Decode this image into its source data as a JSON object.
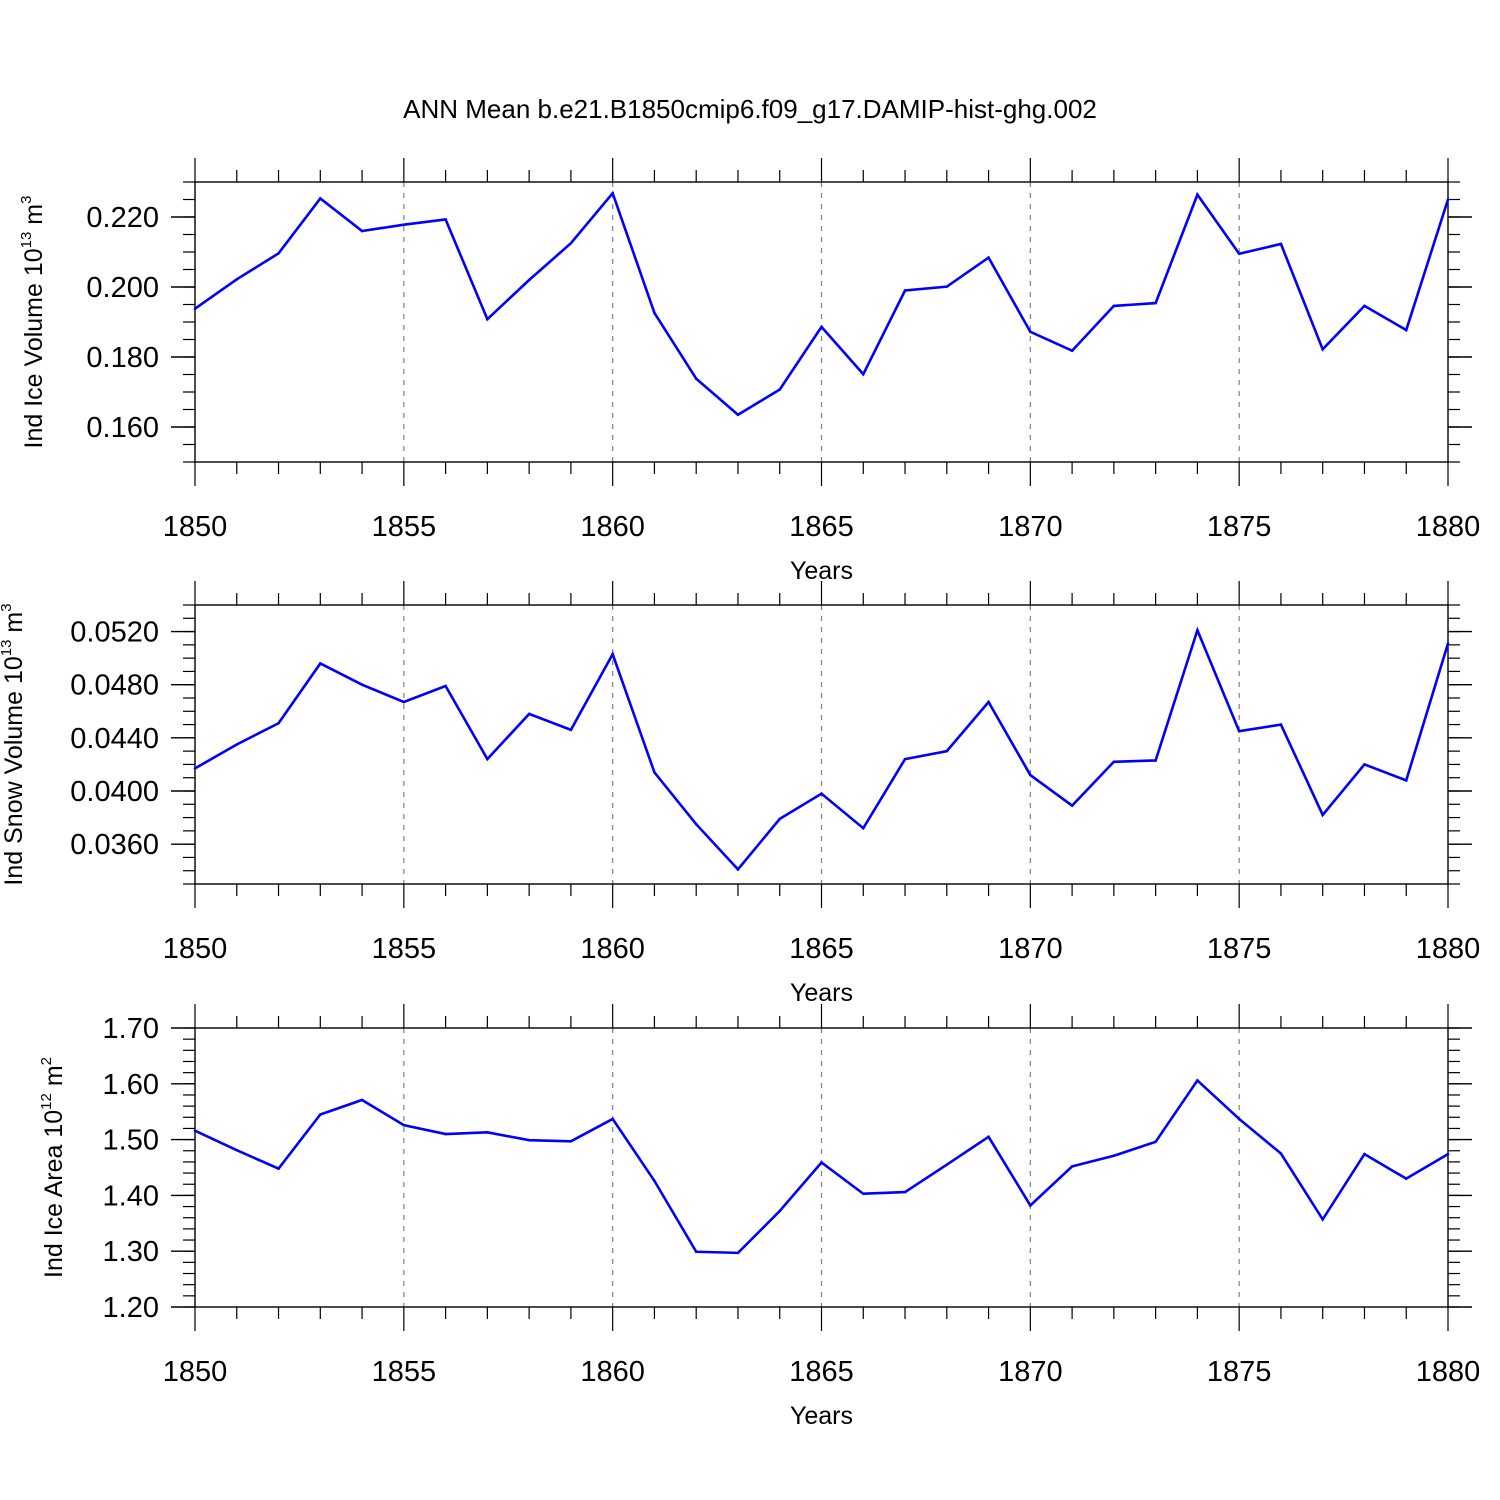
{
  "figure": {
    "title": "ANN Mean b.e21.B1850cmip6.f09_g17.DAMIP-hist-ghg.002"
  },
  "colors": {
    "line": "#0000ff",
    "axis": "#000000",
    "grid": "#808080"
  },
  "chart_data": [
    {
      "type": "line",
      "xlabel": "Years",
      "ylabel": "Ind Ice Volume 10",
      "ylabel_exp": "13",
      "ylabel_unit": " m",
      "ylabel_unit_exp": "3",
      "xlim": [
        1850,
        1880
      ],
      "ylim": [
        0.15,
        0.23
      ],
      "xticks": [
        "1850",
        "1855",
        "1860",
        "1865",
        "1870",
        "1875",
        "1880"
      ],
      "yticks": [
        "0.160",
        "0.180",
        "0.200",
        "0.220"
      ],
      "grid": "vertical dashed at major x ticks",
      "x": [
        1850,
        1851,
        1852,
        1853,
        1854,
        1855,
        1856,
        1857,
        1858,
        1859,
        1860,
        1861,
        1862,
        1863,
        1864,
        1865,
        1866,
        1867,
        1868,
        1869,
        1870,
        1871,
        1872,
        1873,
        1874,
        1875,
        1876,
        1877,
        1878,
        1879,
        1880
      ],
      "values": [
        0.1938,
        0.2022,
        0.2096,
        0.2253,
        0.216,
        0.2178,
        0.2193,
        0.1908,
        0.202,
        0.2125,
        0.2268,
        0.1926,
        0.1738,
        0.1635,
        0.1707,
        0.1886,
        0.1751,
        0.199,
        0.2001,
        0.2084,
        0.1872,
        0.1818,
        0.1946,
        0.1954,
        0.2264,
        0.2095,
        0.2123,
        0.1822,
        0.1946,
        0.1877,
        0.225
      ]
    },
    {
      "type": "line",
      "xlabel": "Years",
      "ylabel": "Ind Snow Volume 10",
      "ylabel_exp": "13",
      "ylabel_unit": " m",
      "ylabel_unit_exp": "3",
      "xlim": [
        1850,
        1880
      ],
      "ylim": [
        0.033,
        0.054
      ],
      "xticks": [
        "1850",
        "1855",
        "1860",
        "1865",
        "1870",
        "1875",
        "1880"
      ],
      "yticks": [
        "0.0360",
        "0.0400",
        "0.0440",
        "0.0480",
        "0.0520"
      ],
      "grid": "vertical dashed at major x ticks",
      "x": [
        1850,
        1851,
        1852,
        1853,
        1854,
        1855,
        1856,
        1857,
        1858,
        1859,
        1860,
        1861,
        1862,
        1863,
        1864,
        1865,
        1866,
        1867,
        1868,
        1869,
        1870,
        1871,
        1872,
        1873,
        1874,
        1875,
        1876,
        1877,
        1878,
        1879,
        1880
      ],
      "values": [
        0.0417,
        0.0435,
        0.0451,
        0.0496,
        0.048,
        0.0467,
        0.0479,
        0.0424,
        0.0458,
        0.0446,
        0.0503,
        0.0414,
        0.0375,
        0.0341,
        0.0379,
        0.0398,
        0.0372,
        0.0424,
        0.043,
        0.0467,
        0.0412,
        0.0389,
        0.0422,
        0.0423,
        0.0521,
        0.0445,
        0.045,
        0.0382,
        0.042,
        0.0408,
        0.0511
      ]
    },
    {
      "type": "line",
      "xlabel": "Years",
      "ylabel": "Ind Ice Area 10",
      "ylabel_exp": "12",
      "ylabel_unit": " m",
      "ylabel_unit_exp": "2",
      "xlim": [
        1850,
        1880
      ],
      "ylim": [
        1.2,
        1.7
      ],
      "xticks": [
        "1850",
        "1855",
        "1860",
        "1865",
        "1870",
        "1875",
        "1880"
      ],
      "yticks": [
        "1.20",
        "1.30",
        "1.40",
        "1.50",
        "1.60",
        "1.70"
      ],
      "grid": "vertical dashed at major x ticks",
      "x": [
        1850,
        1851,
        1852,
        1853,
        1854,
        1855,
        1856,
        1857,
        1858,
        1859,
        1860,
        1861,
        1862,
        1863,
        1864,
        1865,
        1866,
        1867,
        1868,
        1869,
        1870,
        1871,
        1872,
        1873,
        1874,
        1875,
        1876,
        1877,
        1878,
        1879,
        1880
      ],
      "values": [
        1.516,
        1.481,
        1.448,
        1.545,
        1.571,
        1.526,
        1.51,
        1.513,
        1.499,
        1.497,
        1.537,
        1.426,
        1.299,
        1.297,
        1.372,
        1.459,
        1.403,
        1.406,
        1.455,
        1.505,
        1.382,
        1.452,
        1.471,
        1.496,
        1.606,
        1.537,
        1.475,
        1.357,
        1.474,
        1.43,
        1.474
      ]
    }
  ]
}
